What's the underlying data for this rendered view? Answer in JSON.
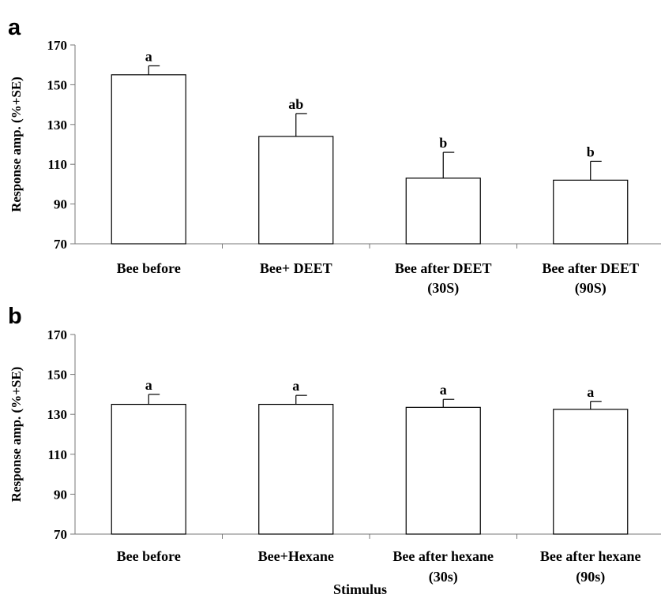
{
  "chart_data": [
    {
      "type": "bar",
      "panel_label": "a",
      "categories": [
        [
          "Bee before"
        ],
        [
          "Bee+ DEET"
        ],
        [
          "Bee after DEET",
          "(30S)"
        ],
        [
          "Bee after DEET",
          "(90S)"
        ]
      ],
      "values": [
        155,
        124,
        103,
        102
      ],
      "errors": [
        4.5,
        11.5,
        13,
        9.5
      ],
      "significance": [
        "a",
        "ab",
        "b",
        "b"
      ],
      "xlabel": "",
      "ylabel": "Response amp. (%+SE)",
      "ylim": [
        70,
        170
      ],
      "yticks": [
        70,
        90,
        110,
        130,
        150,
        170
      ],
      "grid": false,
      "legend": "none"
    },
    {
      "type": "bar",
      "panel_label": "b",
      "categories": [
        [
          "Bee before"
        ],
        [
          "Bee+Hexane"
        ],
        [
          "Bee after hexane",
          "(30s)"
        ],
        [
          "Bee after hexane",
          "(90s)"
        ]
      ],
      "values": [
        135,
        135,
        133.5,
        132.5
      ],
      "errors": [
        5,
        4.5,
        4,
        4
      ],
      "significance": [
        "a",
        "a",
        "a",
        "a"
      ],
      "xlabel": "Stimulus",
      "ylabel": "Response amp. (%+SE)",
      "ylim": [
        70,
        170
      ],
      "yticks": [
        70,
        90,
        110,
        130,
        150,
        170
      ],
      "grid": false,
      "legend": "none"
    }
  ]
}
